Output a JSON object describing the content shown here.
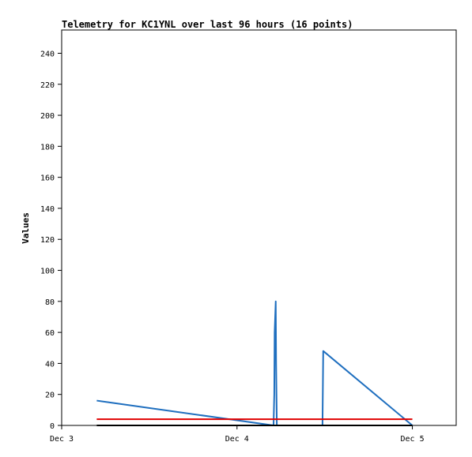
{
  "chart_data": {
    "type": "line",
    "title": "Telemetry for KC1YNL over last 96 hours (16 points)",
    "xlabel": "",
    "ylabel": "Values",
    "x_ticks": [
      "Dec 3",
      "Dec 4",
      "Dec 5"
    ],
    "x_tick_values": [
      0,
      24,
      48
    ],
    "xlim": [
      0,
      54
    ],
    "y_ticks": [
      0,
      20,
      40,
      60,
      80,
      100,
      120,
      140,
      160,
      180,
      200,
      220,
      240
    ],
    "ylim": [
      0,
      255
    ],
    "grid": false,
    "legend": "none",
    "series": [
      {
        "color": "#1f6fbf",
        "x": [
          4.8,
          29.0,
          29.1,
          29.15,
          29.3,
          29.35,
          29.45,
          35.7,
          35.75,
          35.8,
          48.0
        ],
        "values": [
          16,
          0,
          20,
          60,
          80,
          40,
          0,
          0,
          24,
          48,
          0
        ]
      },
      {
        "color": "#e00000",
        "x": [
          4.8,
          48.0
        ],
        "values": [
          4,
          4
        ]
      },
      {
        "color": "#000000",
        "x": [
          4.8,
          48.0
        ],
        "values": [
          0,
          0
        ]
      }
    ]
  }
}
